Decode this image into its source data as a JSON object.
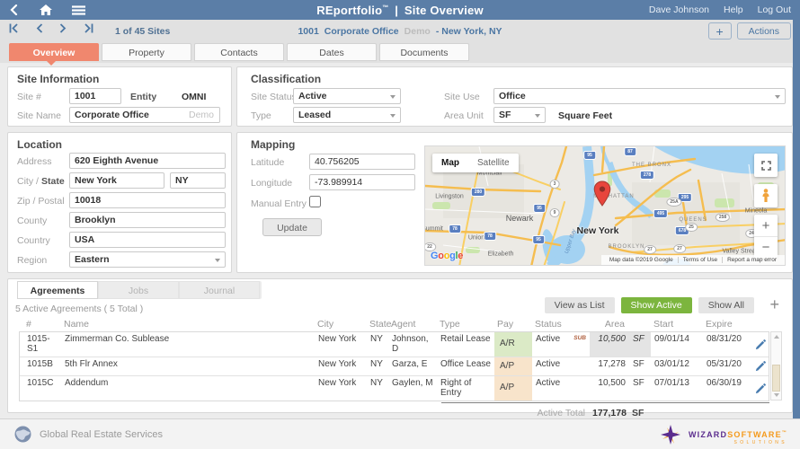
{
  "header": {
    "brand": "REportfolio",
    "tm": "™",
    "divider": "|",
    "page_title": "Site Overview",
    "user": "Dave Johnson",
    "help": "Help",
    "logout": "Log Out"
  },
  "navbar": {
    "pager": "1 of 45 Sites",
    "site_id": "1001",
    "site_name": "Corporate Office",
    "demo": "Demo",
    "location": "- New York, NY",
    "actions": "Actions",
    "add": "+"
  },
  "tabs": [
    {
      "label": "Overview",
      "active": true
    },
    {
      "label": "Property",
      "active": false
    },
    {
      "label": "Contacts",
      "active": false
    },
    {
      "label": "Dates",
      "active": false
    },
    {
      "label": "Documents",
      "active": false
    }
  ],
  "site_info": {
    "title": "Site Information",
    "site_num_label": "Site #",
    "site_num": "1001",
    "entity_label": "Entity",
    "entity": "OMNI",
    "site_name_label": "Site Name",
    "site_name": "Corporate Office",
    "site_name_suffix": "Demo"
  },
  "classification": {
    "title": "Classification",
    "site_status_label": "Site Status",
    "site_status": "Active",
    "site_use_label": "Site Use",
    "site_use": "Office",
    "type_label": "Type",
    "type": "Leased",
    "area_unit_label": "Area Unit",
    "area_unit": "SF",
    "area_unit_name": "Square Feet"
  },
  "location": {
    "title": "Location",
    "address_label": "Address",
    "address": "620 Eighth Avenue",
    "city_label": "City /",
    "state_label": "State",
    "city": "New York",
    "state": "NY",
    "zip_label": "Zip / Postal",
    "zip": "10018",
    "county_label": "County",
    "county": "Brooklyn",
    "country_label": "Country",
    "country": "USA",
    "region_label": "Region",
    "region": "Eastern"
  },
  "mapping": {
    "title": "Mapping",
    "latitude_label": "Latitude",
    "latitude": "40.756205",
    "longitude_label": "Longitude",
    "longitude": "-73.989914",
    "manual_entry_label": "Manual Entry",
    "update": "Update"
  },
  "map": {
    "map_btn": "Map",
    "satellite_btn": "Satellite",
    "google": "Google",
    "attribution": "Map data ©2019 Google",
    "terms": "Terms of Use",
    "report": "Report a map error",
    "places": [
      {
        "text": "Montclair",
        "kind": "city"
      },
      {
        "text": "Livingston",
        "kind": "city"
      },
      {
        "text": "Newark",
        "kind": "city-lg"
      },
      {
        "text": "Summit",
        "kind": "city"
      },
      {
        "text": "Union",
        "kind": "city"
      },
      {
        "text": "Elizabeth",
        "kind": "city"
      },
      {
        "text": "New York",
        "kind": "big"
      },
      {
        "text": "MANHATTAN",
        "kind": "borough"
      },
      {
        "text": "THE BRONX",
        "kind": "borough"
      },
      {
        "text": "QUEENS",
        "kind": "borough"
      },
      {
        "text": "BROOKLYN",
        "kind": "borough"
      },
      {
        "text": "Mineola",
        "kind": "city"
      },
      {
        "text": "Valley Stream",
        "kind": "city"
      },
      {
        "text": "Upper Bay",
        "kind": "water"
      }
    ],
    "shields": [
      {
        "n": "95",
        "k": "i"
      },
      {
        "n": "87",
        "k": "i"
      },
      {
        "n": "278",
        "k": "i"
      },
      {
        "n": "280",
        "k": "i"
      },
      {
        "n": "3",
        "k": "s"
      },
      {
        "n": "95",
        "k": "i"
      },
      {
        "n": "9",
        "k": "s"
      },
      {
        "n": "295",
        "k": "i"
      },
      {
        "n": "25A",
        "k": "s"
      },
      {
        "n": "495",
        "k": "i"
      },
      {
        "n": "258",
        "k": "s"
      },
      {
        "n": "678",
        "k": "i"
      },
      {
        "n": "25",
        "k": "s"
      },
      {
        "n": "78",
        "k": "i"
      },
      {
        "n": "95",
        "k": "i"
      },
      {
        "n": "78",
        "k": "i"
      },
      {
        "n": "27",
        "k": "s"
      },
      {
        "n": "27",
        "k": "s"
      },
      {
        "n": "24",
        "k": "s"
      },
      {
        "n": "22",
        "k": "s"
      }
    ]
  },
  "agreements": {
    "tabs": [
      {
        "label": "Agreements",
        "active": true
      },
      {
        "label": "Jobs",
        "active": false
      },
      {
        "label": "Journal",
        "active": false
      }
    ],
    "summary": "5 Active Agreements ( 5 Total )",
    "view_as_list": "View as List",
    "show_active": "Show Active",
    "show_all": "Show All",
    "add": "+",
    "columns": [
      "#",
      "Name",
      "City",
      "State",
      "Agent",
      "Type",
      "Pay",
      "Status",
      "Area",
      "Start",
      "Expire"
    ],
    "rows": [
      {
        "num": "1015-S1",
        "name": "Zimmerman Co. Sublease",
        "city": "New York",
        "state": "NY",
        "agent": "Johnson, D",
        "type": "Retail Lease",
        "pay": "A/R",
        "status": "Active",
        "status_tag": "SUB",
        "area": "10,500",
        "unit": "SF",
        "area_highlight": true,
        "start": "09/01/14",
        "expire": "08/31/20"
      },
      {
        "num": "1015B",
        "name": "5th Flr Annex",
        "city": "New York",
        "state": "NY",
        "agent": "Garza, E",
        "type": "Office Lease",
        "pay": "A/P",
        "status": "Active",
        "status_tag": "",
        "area": "17,278",
        "unit": "SF",
        "area_highlight": false,
        "start": "03/01/12",
        "expire": "05/31/20"
      },
      {
        "num": "1015C",
        "name": "Addendum",
        "city": "New York",
        "state": "NY",
        "agent": "Gaylen, M",
        "type": "Right of Entry",
        "pay": "A/P",
        "status": "Active",
        "status_tag": "",
        "area": "10,500",
        "unit": "SF",
        "area_highlight": false,
        "start": "07/01/13",
        "expire": "06/30/19"
      }
    ],
    "total_label": "Active Total",
    "total_area": "177,178",
    "total_unit": "SF"
  },
  "footer": {
    "company": "Global Real Estate Services",
    "logo_word1": "WIZARD",
    "logo_word2": "SOFTWARE",
    "logo_tm": "™",
    "logo_line2": "SOLUTIONS"
  },
  "colors": {
    "header_blue": "#5b7ea7",
    "tab_active": "#f0876e",
    "show_active_green": "#7cb53e",
    "pay_receivable_bg": "#dbeac6",
    "pay_payable_bg": "#f8e4cb",
    "link_blue": "#4b76a3",
    "sub_tag": "#b0603f",
    "google_letters": [
      "#4285F4",
      "#EA4335",
      "#FBBC05",
      "#4285F4",
      "#34A853",
      "#EA4335"
    ]
  }
}
